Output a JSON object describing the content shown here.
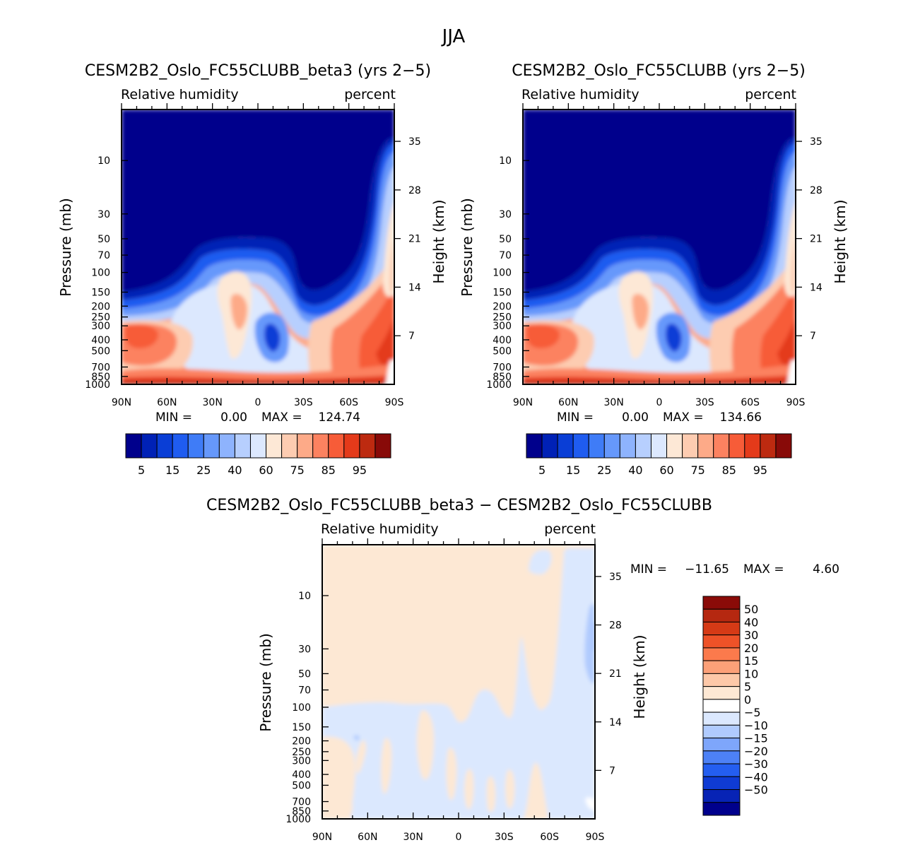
{
  "page_title": "JJA",
  "colors": {
    "cmap": [
      "#00008c",
      "#0021b6",
      "#0a3ed6",
      "#1f5cf0",
      "#3f7cf7",
      "#6698fb",
      "#8eb3fd",
      "#b7cffe",
      "#dce8fe",
      "#fde8d6",
      "#fdccb1",
      "#fdaa88",
      "#fc8260",
      "#f75c38",
      "#e43a1a",
      "#bd2a10",
      "#880a08"
    ]
  },
  "chart_data": [
    {
      "type": "contour",
      "title": "CESM2B2_Oslo_FC55CLUBB_beta3 (yrs 2−5)",
      "subtitle_left": "Relative humidity",
      "subtitle_right": "percent",
      "xlabel": "",
      "ylabel": "Pressure (mb)",
      "ylabel_right": "Height (km)",
      "x_ticks": [
        "90N",
        "60N",
        "30N",
        "0",
        "30S",
        "60S",
        "90S"
      ],
      "x_range": [
        90,
        -90
      ],
      "y_ticks": [
        "10",
        "30",
        "50",
        "70",
        "100",
        "150",
        "200",
        "250",
        "300",
        "400",
        "500",
        "700",
        "850",
        "1000"
      ],
      "y_ticks_right": [
        "35",
        "28",
        "21",
        "14",
        "7"
      ],
      "stats": {
        "min_label": "MIN =",
        "min": "0.00",
        "max_label": "MAX =",
        "max": "124.74"
      },
      "colorbar_labels": [
        "5",
        "15",
        "25",
        "40",
        "60",
        "75",
        "85",
        "95"
      ]
    },
    {
      "type": "contour",
      "title": "CESM2B2_Oslo_FC55CLUBB (yrs 2−5)",
      "subtitle_left": "Relative humidity",
      "subtitle_right": "percent",
      "xlabel": "",
      "ylabel": "Pressure (mb)",
      "ylabel_right": "Height (km)",
      "x_ticks": [
        "90N",
        "60N",
        "30N",
        "0",
        "30S",
        "60S",
        "90S"
      ],
      "x_range": [
        90,
        -90
      ],
      "y_ticks": [
        "10",
        "30",
        "50",
        "70",
        "100",
        "150",
        "200",
        "250",
        "300",
        "400",
        "500",
        "700",
        "850",
        "1000"
      ],
      "y_ticks_right": [
        "35",
        "28",
        "21",
        "14",
        "7"
      ],
      "stats": {
        "min_label": "MIN =",
        "min": "0.00",
        "max_label": "MAX =",
        "max": "134.66"
      },
      "colorbar_labels": [
        "5",
        "15",
        "25",
        "40",
        "60",
        "75",
        "85",
        "95"
      ]
    },
    {
      "type": "contour",
      "title": "CESM2B2_Oslo_FC55CLUBB_beta3 − CESM2B2_Oslo_FC55CLUBB",
      "subtitle_left": "Relative humidity",
      "subtitle_right": "percent",
      "xlabel": "",
      "ylabel": "Pressure (mb)",
      "ylabel_right": "Height (km)",
      "x_ticks": [
        "90N",
        "60N",
        "30N",
        "0",
        "30S",
        "60S",
        "90S"
      ],
      "x_range": [
        90,
        -90
      ],
      "y_ticks": [
        "10",
        "30",
        "50",
        "70",
        "100",
        "150",
        "200",
        "250",
        "300",
        "400",
        "500",
        "700",
        "850",
        "1000"
      ],
      "y_ticks_right": [
        "35",
        "28",
        "21",
        "14",
        "7"
      ],
      "stats": {
        "min_label": "MIN =",
        "min": "−11.65",
        "max_label": "MAX =",
        "max": "4.60"
      },
      "colorbar_labels": [
        "50",
        "40",
        "30",
        "20",
        "15",
        "10",
        "5",
        "0",
        "−5",
        "−10",
        "−15",
        "−20",
        "−30",
        "−40",
        "−50"
      ],
      "colorbar_colors": [
        "#8a0b08",
        "#b52810",
        "#d63a16",
        "#ee5228",
        "#fb7a4c",
        "#fca078",
        "#fdc8a8",
        "#fde8d4",
        "#ffffff",
        "#dbe8fe",
        "#b0cbfe",
        "#7ea6fb",
        "#4d81f6",
        "#245ef0",
        "#0f3bd4",
        "#0723b5",
        "#00008c"
      ]
    }
  ]
}
